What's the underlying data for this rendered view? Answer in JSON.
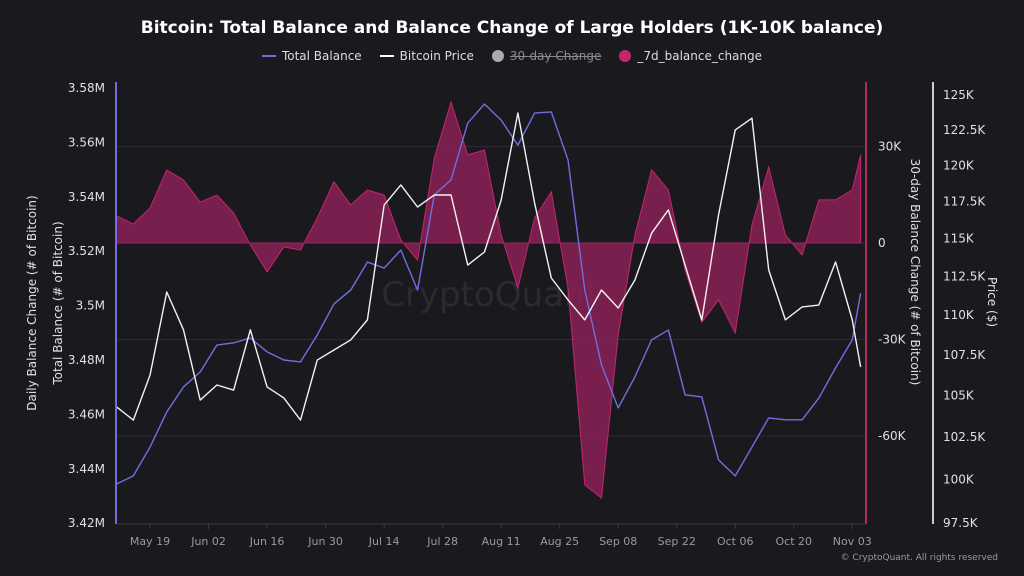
{
  "chart_data": {
    "type": "line",
    "title": "Bitcoin: Total Balance and Balance Change of Large Holders (1K-10K balance)",
    "legend": {
      "placement": "top",
      "items": [
        {
          "label": "Total Balance",
          "kind": "line",
          "color": "#6f6fe0",
          "hidden": false
        },
        {
          "label": "Bitcoin Price",
          "kind": "line",
          "color": "#ffffff",
          "hidden": false
        },
        {
          "label": "30-day Change",
          "kind": "dot",
          "color": "#a9a9b3",
          "hidden": true
        },
        {
          "label": "_7d_balance_change",
          "kind": "dot",
          "color": "#c4256c",
          "hidden": false
        }
      ]
    },
    "axes": {
      "left": {
        "label_outer": "Daily Balance Change (# of Bitcoin)",
        "label_inner": "Total Balance (# of Bitcoin)",
        "ticks": [
          "3.58M",
          "3.56M",
          "3.54M",
          "3.52M",
          "3.5M",
          "3.48M",
          "3.46M",
          "3.44M",
          "3.42M"
        ],
        "tick_values": [
          3580000,
          3560000,
          3540000,
          3520000,
          3500000,
          3480000,
          3460000,
          3440000,
          3420000
        ],
        "range": [
          3420000,
          3580000
        ],
        "color": "#6f6fe0"
      },
      "middle": {
        "label": "30-day Balance Change (# of Bitcoin)",
        "ticks": [
          "30K",
          "0",
          "-30K",
          "-60K"
        ],
        "tick_values": [
          30000,
          0,
          -30000,
          -60000
        ],
        "range": [
          -87000,
          49000
        ],
        "color": "#c4256c"
      },
      "right": {
        "label": "Price ($)",
        "scale": "log",
        "ticks": [
          "125K",
          "122.5K",
          "120K",
          "117.5K",
          "115K",
          "112.5K",
          "110K",
          "107.5K",
          "105K",
          "102.5K",
          "100K",
          "97.5K"
        ],
        "tick_values": [
          125000,
          122500,
          120000,
          117500,
          115000,
          112500,
          110000,
          107500,
          105000,
          102500,
          100000,
          97500
        ],
        "range": [
          97500,
          125700
        ],
        "color": "#ffffff"
      },
      "x": {
        "ticks": [
          "May 19",
          "Jun 02",
          "Jun 16",
          "Jun 30",
          "Jul 14",
          "Jul 28",
          "Aug 11",
          "Aug 25",
          "Sep 08",
          "Sep 22",
          "Oct 06",
          "Oct 20",
          "Nov 03"
        ],
        "range": [
          "May 11",
          "Nov 05"
        ]
      }
    },
    "grid": true,
    "x": [
      "May 11",
      "May 15",
      "May 19",
      "May 23",
      "May 27",
      "May 31",
      "Jun 04",
      "Jun 08",
      "Jun 12",
      "Jun 16",
      "Jun 20",
      "Jun 24",
      "Jun 28",
      "Jul 02",
      "Jul 06",
      "Jul 10",
      "Jul 14",
      "Jul 18",
      "Jul 22",
      "Jul 26",
      "Jul 30",
      "Aug 03",
      "Aug 07",
      "Aug 11",
      "Aug 15",
      "Aug 19",
      "Aug 23",
      "Aug 27",
      "Aug 31",
      "Sep 04",
      "Sep 08",
      "Sep 12",
      "Sep 16",
      "Sep 20",
      "Sep 24",
      "Sep 28",
      "Oct 02",
      "Oct 06",
      "Oct 10",
      "Oct 14",
      "Oct 18",
      "Oct 22",
      "Oct 26",
      "Oct 30",
      "Nov 03",
      "Nov 05"
    ],
    "series": [
      {
        "name": "Total Balance",
        "axis": "left",
        "values": [
          3434400,
          3437400,
          3448000,
          3460900,
          3470100,
          3475600,
          3485500,
          3486300,
          3488100,
          3483000,
          3480000,
          3479300,
          3489200,
          3500600,
          3505700,
          3516000,
          3513800,
          3520400,
          3505700,
          3540700,
          3546200,
          3567100,
          3574100,
          3568200,
          3559000,
          3570800,
          3571200,
          3553500,
          3505700,
          3478200,
          3462400,
          3473800,
          3487400,
          3491000,
          3467200,
          3466400,
          3443300,
          3437400,
          3448000,
          3458700,
          3458000,
          3458000,
          3466000,
          3477100,
          3487400,
          3504600
        ]
      },
      {
        "name": "Bitcoin Price",
        "axis": "right",
        "values": [
          104290,
          103500,
          106240,
          111490,
          109070,
          104710,
          105630,
          105320,
          109070,
          105510,
          104840,
          103500,
          107170,
          107800,
          108430,
          109700,
          117260,
          118640,
          117130,
          117950,
          117950,
          113250,
          114110,
          117600,
          123700,
          117400,
          112400,
          110980,
          109700,
          111620,
          110460,
          112270,
          115370,
          116930,
          113250,
          109700,
          116590,
          122490,
          123330,
          112930,
          109700,
          110530,
          110650,
          113450,
          109700,
          106740
        ]
      },
      {
        "name": "_7d_balance_change",
        "axis": "middle",
        "kind": "area",
        "values": [
          8400,
          5900,
          10900,
          22700,
          19600,
          12700,
          14900,
          9300,
          -600,
          -9000,
          -1200,
          -2200,
          7800,
          19000,
          11800,
          16500,
          14900,
          900,
          -5300,
          26400,
          43800,
          27400,
          28900,
          2500,
          -14000,
          7800,
          15900,
          -14000,
          -75200,
          -79300,
          -28600,
          2500,
          22700,
          16500,
          -8400,
          -24600,
          -17700,
          -28000,
          5600,
          23600,
          2500,
          -3700,
          13400,
          13400,
          16500,
          27400
        ]
      }
    ],
    "watermark": "CryptoQuant"
  },
  "footer": "© CryptoQuant. All rights reserved"
}
